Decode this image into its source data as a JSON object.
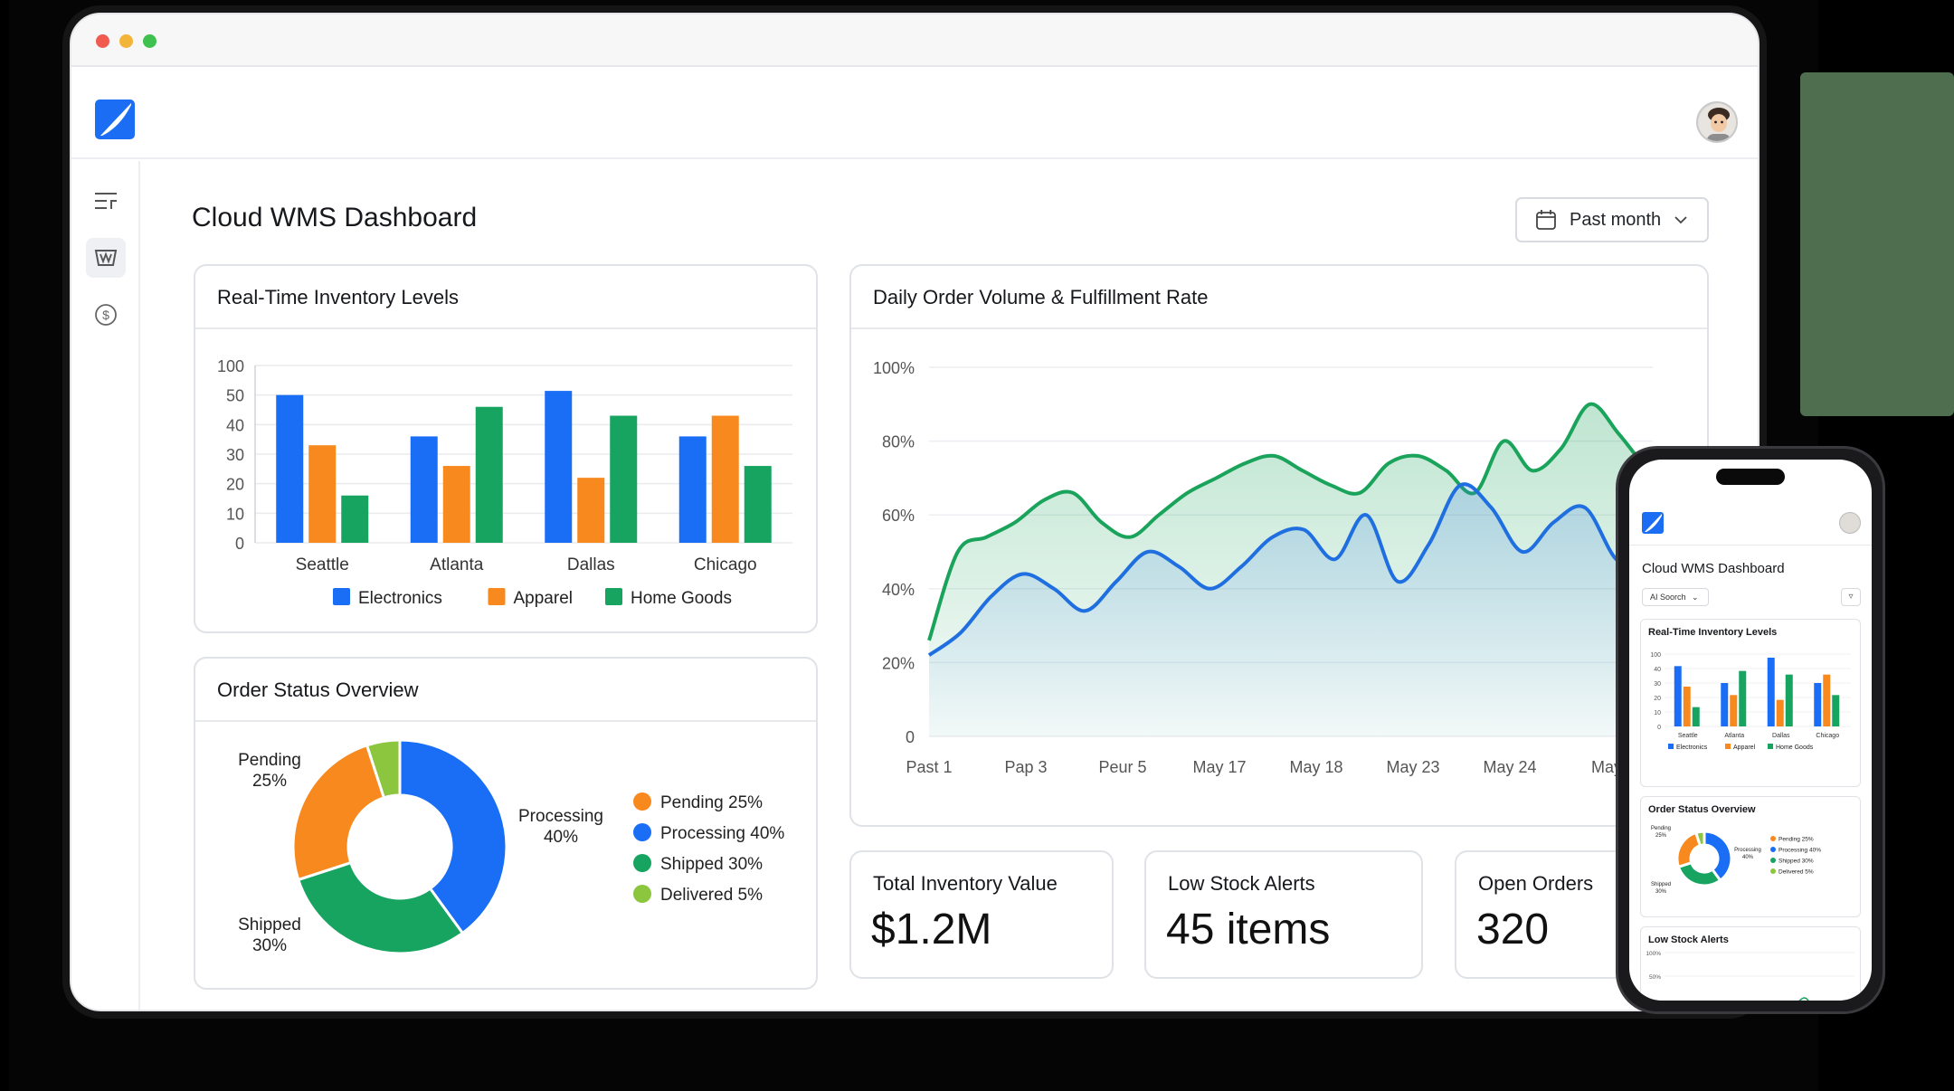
{
  "app": {
    "title": "Cloud WMS Dashboard",
    "date_filter": "Past month"
  },
  "sidebar": {
    "items": [
      {
        "name": "menu",
        "icon": "menu-icon"
      },
      {
        "name": "inventory",
        "icon": "basket-icon"
      },
      {
        "name": "billing",
        "icon": "dollar-icon"
      }
    ]
  },
  "colors": {
    "electronics": "#1a6ef5",
    "apparel": "#f7891f",
    "home_goods": "#17a460",
    "delivered": "#8cc63f",
    "line_blue": "#1f6fe0",
    "line_green": "#1aa35a"
  },
  "inventory_card": {
    "title": "Real-Time Inventory Levels"
  },
  "order_status_card": {
    "title": "Order Status Overview"
  },
  "order_volume_card": {
    "title": "Daily Order Volume & Fulfillment Rate"
  },
  "kpis": [
    {
      "title": "Total Inventory Value",
      "value": "$1.2M"
    },
    {
      "title": "Low Stock Alerts",
      "value": "45 items"
    },
    {
      "title": "Open Orders",
      "value": "320"
    }
  ],
  "chart_data": [
    {
      "type": "bar",
      "title": "Real-Time Inventory Levels",
      "categories": [
        "Seattle",
        "Atlanta",
        "Dallas",
        "Chicago"
      ],
      "y_ticks": [
        "100",
        "50",
        "40",
        "30",
        "20",
        "10",
        "0"
      ],
      "series": [
        {
          "name": "Electronics",
          "values": [
            50,
            36,
            57,
            36
          ]
        },
        {
          "name": "Apparel",
          "values": [
            33,
            26,
            22,
            43
          ]
        },
        {
          "name": "Home Goods",
          "values": [
            16,
            46,
            43,
            26
          ]
        }
      ],
      "legend": "bottom"
    },
    {
      "type": "pie",
      "title": "Order Status Overview",
      "slices": [
        {
          "name": "Pending",
          "value": 25,
          "label": "Pending 25%",
          "callout_name": "Pending",
          "callout_pct": "25%"
        },
        {
          "name": "Processing",
          "value": 40,
          "label": "Processing 40%",
          "callout_name": "Processing",
          "callout_pct": "40%"
        },
        {
          "name": "Shipped",
          "value": 30,
          "label": "Shipped 30%",
          "callout_name": "Shipped",
          "callout_pct": "30%"
        },
        {
          "name": "Delivered",
          "value": 5,
          "label": "Delivered 5%"
        }
      ],
      "legend": "right"
    },
    {
      "type": "area",
      "title": "Daily Order Volume & Fulfillment Rate",
      "x_labels": [
        "Past 1",
        "Pap 3",
        "Peur 5",
        "May 17",
        "May 18",
        "May 23",
        "May 24",
        "May"
      ],
      "y_ticks": [
        "100%",
        "80%",
        "60%",
        "40%",
        "20%",
        "0"
      ],
      "ylim": [
        0,
        100
      ],
      "series": [
        {
          "color": "green",
          "values": [
            26,
            50,
            54,
            58,
            64,
            66,
            58,
            54,
            60,
            66,
            70,
            74,
            76,
            72,
            68,
            66,
            74,
            76,
            72,
            66,
            80,
            72,
            78,
            90,
            82,
            72
          ]
        },
        {
          "color": "blue",
          "values": [
            22,
            28,
            38,
            44,
            40,
            34,
            42,
            50,
            46,
            40,
            46,
            54,
            56,
            48,
            60,
            42,
            52,
            68,
            62,
            50,
            58,
            62,
            48,
            44
          ]
        }
      ]
    }
  ],
  "phone": {
    "title": "Cloud WMS Dashboard",
    "search_label": "AI Soorch",
    "inventory_title": "Real-Time Inventory Levels",
    "order_status_title": "Order Status Overview",
    "low_stock_title": "Low Stock Alerts",
    "mini_y_ticks": [
      "100",
      "40",
      "30",
      "20",
      "10",
      "0"
    ],
    "mini_low_ticks": [
      "100%",
      "50%"
    ]
  }
}
